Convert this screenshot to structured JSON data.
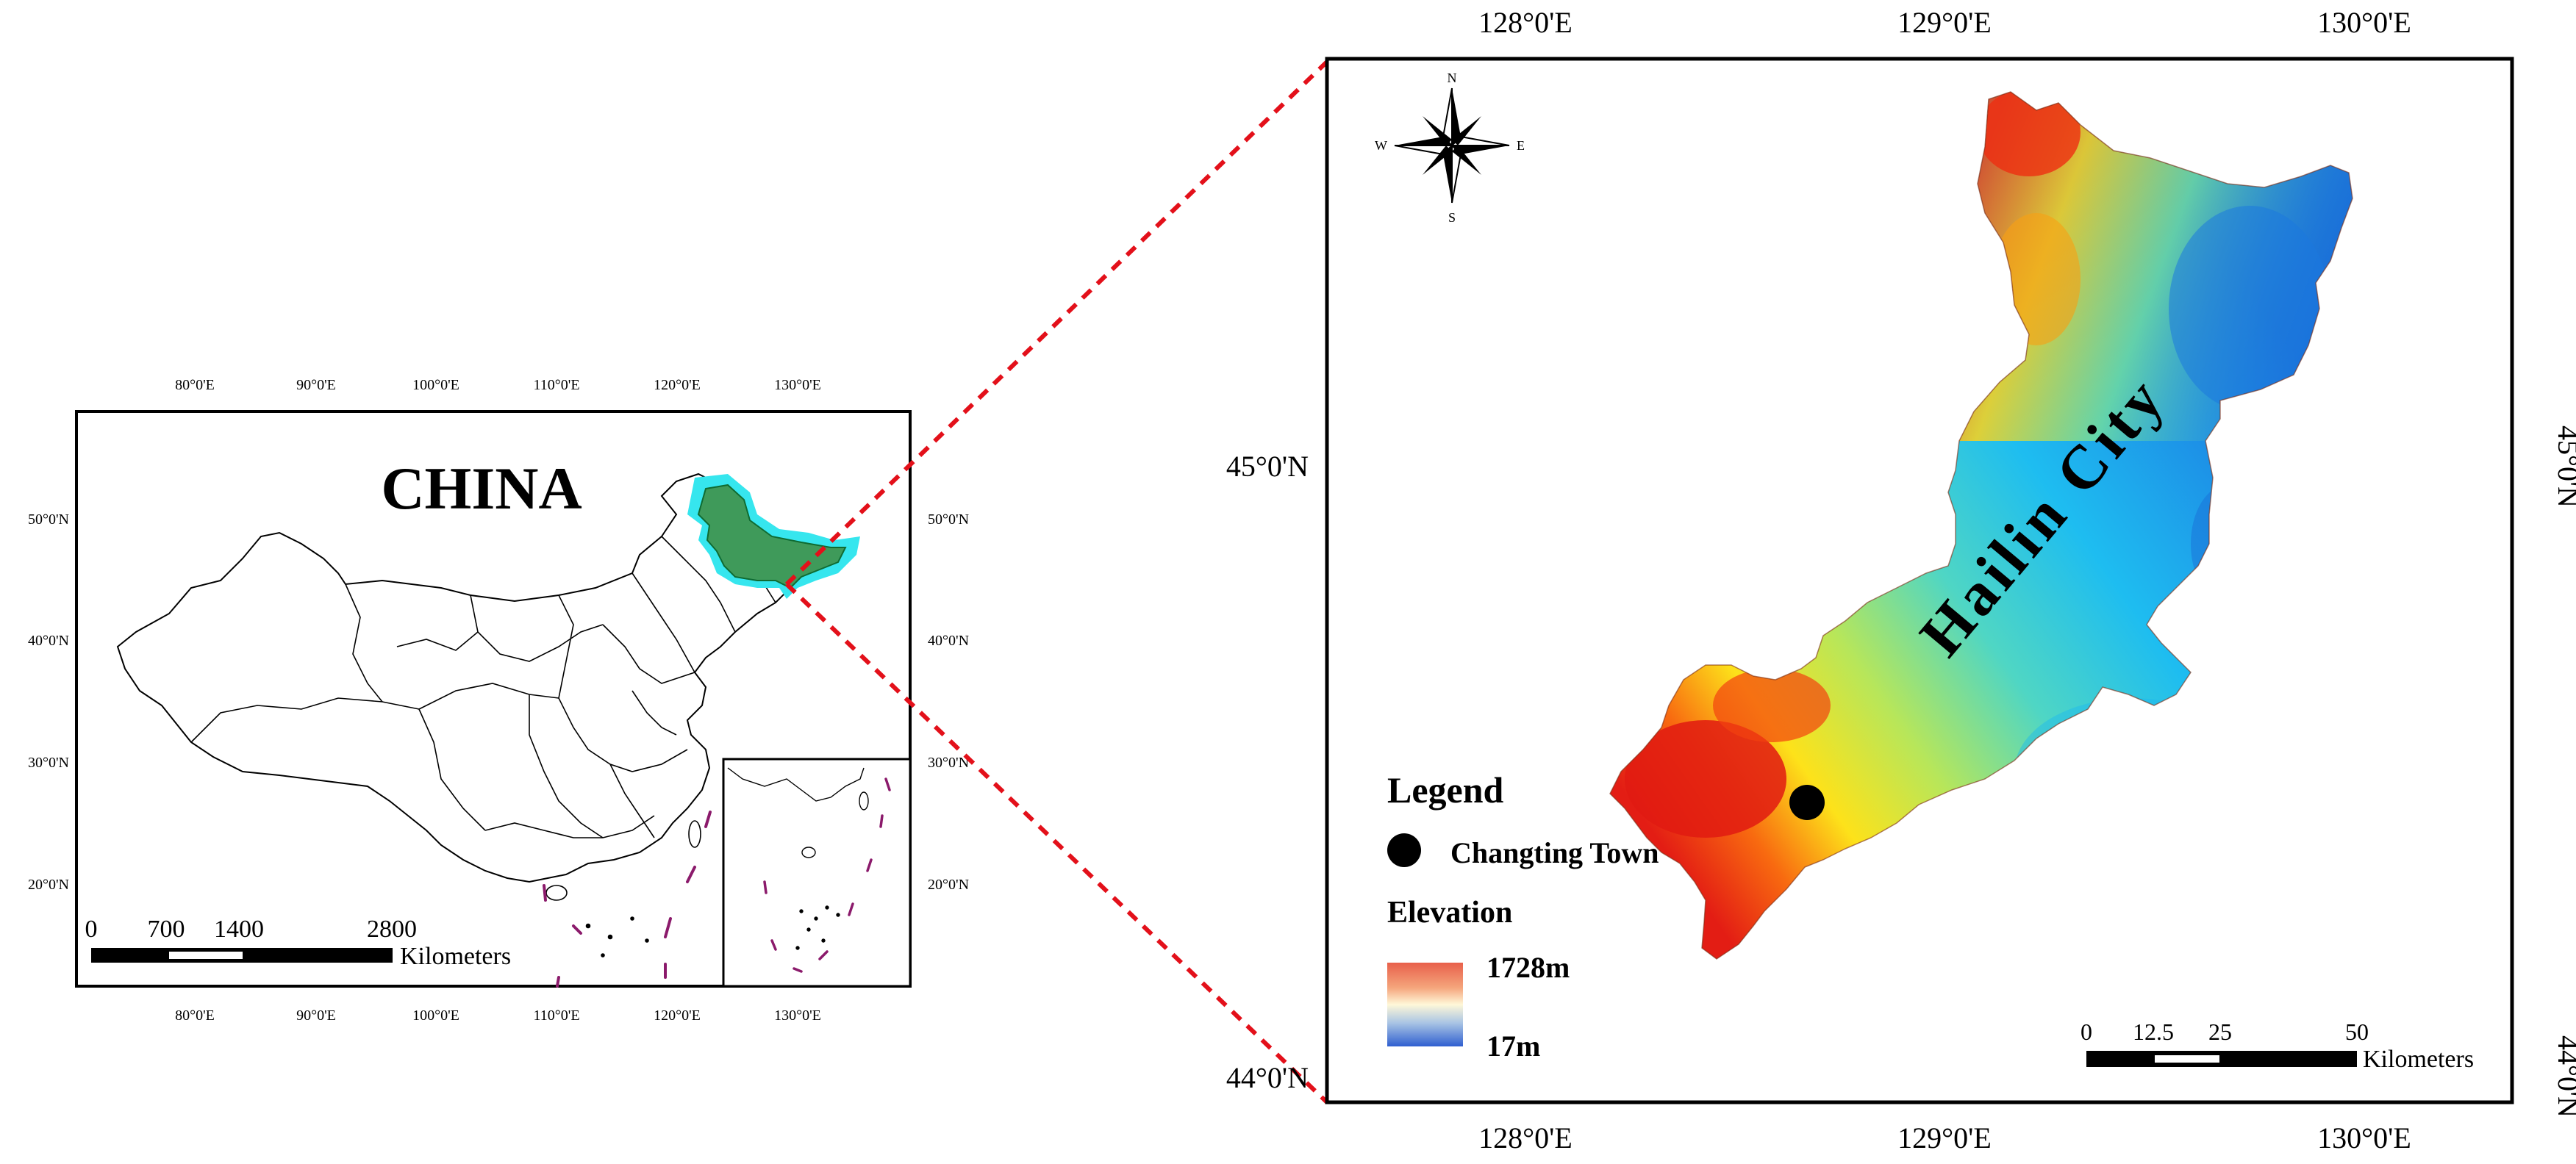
{
  "china_map": {
    "title": "CHINA",
    "top_ticks": [
      "80°0'E",
      "90°0'E",
      "100°0'E",
      "110°0'E",
      "120°0'E",
      "130°0'E"
    ],
    "bottom_ticks": [
      "80°0'E",
      "90°0'E",
      "100°0'E",
      "110°0'E",
      "120°0'E",
      "130°0'E"
    ],
    "left_ticks": [
      "50°0'N",
      "40°0'N",
      "30°0'N",
      "20°0'N"
    ],
    "right_ticks": [
      "50°0'N",
      "40°0'N",
      "30°0'N",
      "20°0'N"
    ],
    "scale_labels": [
      "0",
      "700",
      "1400",
      "2800"
    ],
    "scale_unit": "Kilometers",
    "highlight_fill": "#3f9a5a",
    "highlight_halo": "#36e6ee"
  },
  "detail_map": {
    "region_label": "Hailin City",
    "top_ticks": [
      "128°0'E",
      "129°0'E",
      "130°0'E"
    ],
    "bottom_ticks": [
      "128°0'E",
      "129°0'E",
      "130°0'E"
    ],
    "left_ticks": [
      "45°0'N",
      "44°0'N"
    ],
    "right_ticks": [
      "45°0'N",
      "44°0'N"
    ],
    "compass": {
      "n": "N",
      "s": "S",
      "e": "E",
      "w": "W"
    },
    "legend": {
      "title": "Legend",
      "point_label": "Changting Town",
      "elevation_title": "Elevation",
      "elevation_max": "1728m",
      "elevation_min": "17m",
      "ramp_colors": [
        "#e8604a",
        "#f5a57c",
        "#fff8d8",
        "#a9c4e4",
        "#2f5fd0"
      ]
    },
    "scale_labels": [
      "0",
      "12.5",
      "25",
      "50"
    ],
    "scale_unit": "Kilometers"
  },
  "connector_color": "#e3101a"
}
